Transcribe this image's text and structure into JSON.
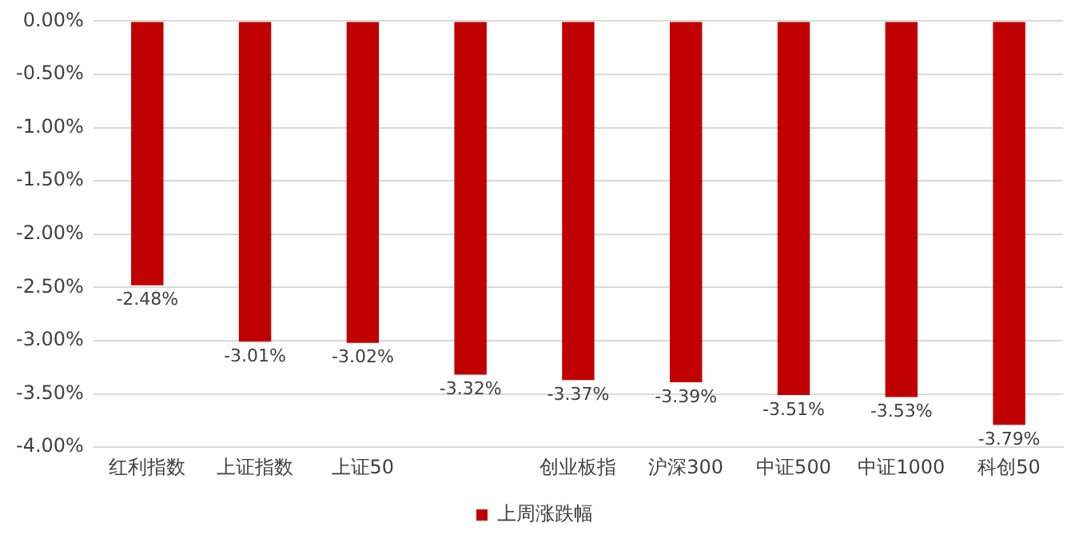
{
  "chart_data": {
    "type": "bar",
    "categories": [
      "红利指数",
      "上证指数",
      "上证50",
      null,
      "创业板指",
      "沪深300",
      "中证500",
      "中证1000",
      "科创50"
    ],
    "series": [
      {
        "name": "上周涨跌幅",
        "color": "#c00000",
        "values": [
          -2.48,
          -3.01,
          -3.02,
          -3.32,
          -3.37,
          -3.39,
          -3.51,
          -3.53,
          -3.79
        ],
        "value_labels": [
          "-2.48%",
          "-3.01%",
          "-3.02%",
          "-3.32%",
          "-3.37%",
          "-3.39%",
          "-3.51%",
          "-3.53%",
          "-3.79%"
        ]
      }
    ],
    "ylim": [
      -4,
      0
    ],
    "yticks": [
      {
        "value": 0,
        "label": "0.00%"
      },
      {
        "value": -0.5,
        "label": "-0.50%"
      },
      {
        "value": -1,
        "label": "-1.00%"
      },
      {
        "value": -1.5,
        "label": "-1.50%"
      },
      {
        "value": -2,
        "label": "-2.00%"
      },
      {
        "value": -2.5,
        "label": "-2.50%"
      },
      {
        "value": -3,
        "label": "-3.00%"
      },
      {
        "value": -3.5,
        "label": "-3.50%"
      },
      {
        "value": -4,
        "label": "-4.00%"
      }
    ],
    "grid": "y",
    "legend": "bottom"
  }
}
